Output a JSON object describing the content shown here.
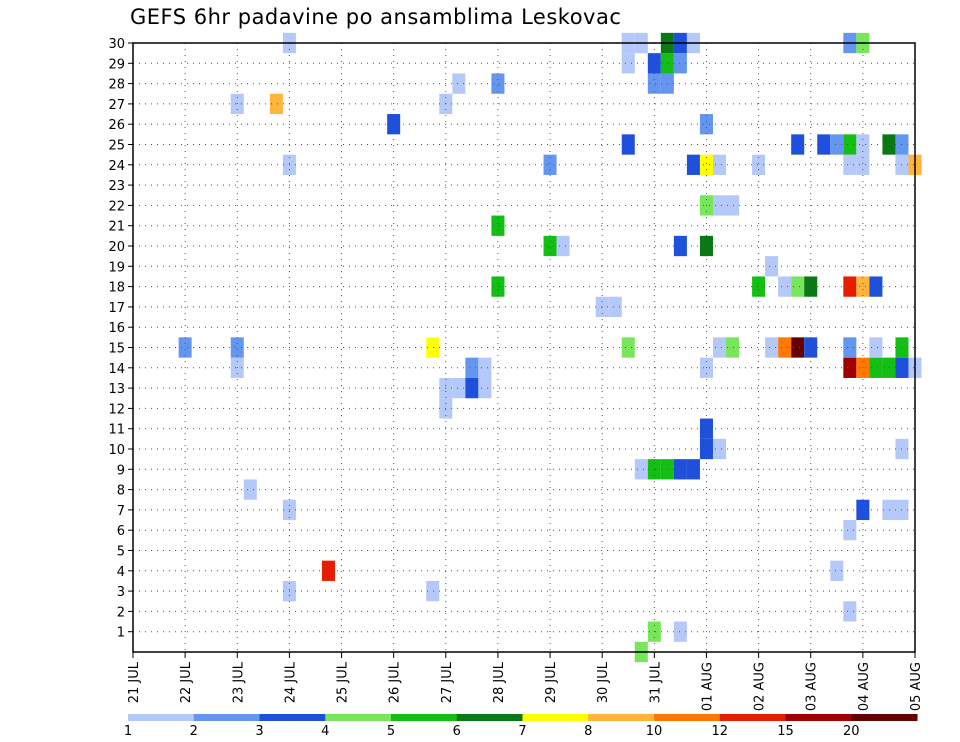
{
  "chart_data": {
    "type": "heatmap",
    "title": "GEFS 6hr padavine po ansamblima Leskovac",
    "x_labels": [
      "21 JUL",
      "22 JUL",
      "23 JUL",
      "24 JUL",
      "25 JUL",
      "26 JUL",
      "27 JUL",
      "28 JUL",
      "29 JUL",
      "30 JUL",
      "31 JUL",
      "01 AUG",
      "02 AUG",
      "03 AUG",
      "04 AUG",
      "05 AUG"
    ],
    "y_labels": [
      "1",
      "2",
      "3",
      "4",
      "5",
      "6",
      "7",
      "8",
      "9",
      "10",
      "11",
      "12",
      "13",
      "14",
      "15",
      "16",
      "17",
      "18",
      "19",
      "20",
      "21",
      "22",
      "23",
      "24",
      "25",
      "26",
      "27",
      "28",
      "29",
      "30"
    ],
    "xlim_days": [
      0,
      15
    ],
    "ylim": [
      0,
      30
    ],
    "time_step_hours": 6,
    "grid": true,
    "legend_placement": "bottom",
    "colorbar": {
      "labels": [
        "1",
        "2",
        "3",
        "4",
        "5",
        "6",
        "7",
        "8",
        "10",
        "12",
        "15",
        "20"
      ],
      "colors": [
        "#b4c8fa",
        "#6496f0",
        "#1e50dc",
        "#78e65a",
        "#14be14",
        "#0a7814",
        "#ffff00",
        "#ffb43c",
        "#ff7800",
        "#e61e00",
        "#a00000",
        "#640000"
      ]
    },
    "note_cells": "cells = [x time in days after 21 JUL 00z (6h steps), ensemble member, color class index into colorbar.colors]",
    "cells": [
      [
        9.75,
        0,
        3
      ],
      [
        10.0,
        1,
        3
      ],
      [
        10.5,
        1,
        0
      ],
      [
        13.75,
        2,
        0
      ],
      [
        3.0,
        3,
        0
      ],
      [
        5.75,
        3,
        0
      ],
      [
        3.75,
        4,
        9
      ],
      [
        13.5,
        4,
        0
      ],
      [
        13.75,
        6,
        0
      ],
      [
        3.0,
        7,
        0
      ],
      [
        14.0,
        7,
        2
      ],
      [
        14.5,
        7,
        0
      ],
      [
        14.75,
        7,
        0
      ],
      [
        2.25,
        8,
        0
      ],
      [
        9.75,
        9,
        0
      ],
      [
        10.0,
        9,
        4
      ],
      [
        10.25,
        9,
        4
      ],
      [
        10.5,
        9,
        2
      ],
      [
        10.75,
        9,
        2
      ],
      [
        11.0,
        10,
        2
      ],
      [
        11.25,
        10,
        0
      ],
      [
        14.75,
        10,
        0
      ],
      [
        11.0,
        11,
        2
      ],
      [
        6.0,
        12,
        0
      ],
      [
        6.0,
        13,
        0
      ],
      [
        6.25,
        13,
        0
      ],
      [
        6.5,
        13,
        2
      ],
      [
        6.75,
        13,
        0
      ],
      [
        2.0,
        14,
        0
      ],
      [
        6.5,
        14,
        1
      ],
      [
        6.75,
        14,
        0
      ],
      [
        11.0,
        14,
        0
      ],
      [
        13.75,
        14,
        10
      ],
      [
        14.0,
        14,
        8
      ],
      [
        14.25,
        14,
        4
      ],
      [
        14.5,
        14,
        4
      ],
      [
        14.75,
        14,
        2
      ],
      [
        15.0,
        14,
        0
      ],
      [
        1.0,
        15,
        1
      ],
      [
        2.0,
        15,
        1
      ],
      [
        5.75,
        15,
        6
      ],
      [
        9.5,
        15,
        3
      ],
      [
        11.25,
        15,
        0
      ],
      [
        11.5,
        15,
        3
      ],
      [
        12.25,
        15,
        0
      ],
      [
        12.5,
        15,
        8
      ],
      [
        12.75,
        15,
        11
      ],
      [
        13.0,
        15,
        2
      ],
      [
        13.75,
        15,
        1
      ],
      [
        14.25,
        15,
        0
      ],
      [
        14.75,
        15,
        4
      ],
      [
        9.0,
        17,
        0
      ],
      [
        9.25,
        17,
        0
      ],
      [
        7.0,
        18,
        4
      ],
      [
        12.0,
        18,
        4
      ],
      [
        12.5,
        18,
        0
      ],
      [
        12.75,
        18,
        3
      ],
      [
        13.0,
        18,
        5
      ],
      [
        13.75,
        18,
        9
      ],
      [
        14.0,
        18,
        7
      ],
      [
        14.25,
        18,
        2
      ],
      [
        12.25,
        19,
        0
      ],
      [
        8.0,
        20,
        4
      ],
      [
        8.25,
        20,
        0
      ],
      [
        10.5,
        20,
        2
      ],
      [
        11.0,
        20,
        5
      ],
      [
        7.0,
        21,
        4
      ],
      [
        11.0,
        22,
        3
      ],
      [
        11.25,
        22,
        0
      ],
      [
        11.5,
        22,
        0
      ],
      [
        3.0,
        24,
        0
      ],
      [
        8.0,
        24,
        1
      ],
      [
        10.75,
        24,
        2
      ],
      [
        11.0,
        24,
        6
      ],
      [
        11.25,
        24,
        0
      ],
      [
        12.0,
        24,
        0
      ],
      [
        13.75,
        24,
        0
      ],
      [
        14.0,
        24,
        0
      ],
      [
        14.75,
        24,
        0
      ],
      [
        15.0,
        24,
        7
      ],
      [
        9.5,
        25,
        2
      ],
      [
        12.75,
        25,
        2
      ],
      [
        13.25,
        25,
        2
      ],
      [
        13.5,
        25,
        1
      ],
      [
        13.75,
        25,
        4
      ],
      [
        14.0,
        25,
        0
      ],
      [
        14.5,
        25,
        5
      ],
      [
        14.75,
        25,
        1
      ],
      [
        5.0,
        26,
        2
      ],
      [
        11.0,
        26,
        1
      ],
      [
        2.0,
        27,
        0
      ],
      [
        2.75,
        27,
        7
      ],
      [
        6.0,
        27,
        0
      ],
      [
        6.25,
        28,
        0
      ],
      [
        7.0,
        28,
        1
      ],
      [
        10.0,
        28,
        1
      ],
      [
        10.25,
        28,
        1
      ],
      [
        9.5,
        29,
        0
      ],
      [
        10.0,
        29,
        2
      ],
      [
        10.25,
        29,
        4
      ],
      [
        10.5,
        29,
        1
      ],
      [
        3.0,
        30,
        0
      ],
      [
        9.5,
        30,
        0
      ],
      [
        9.75,
        30,
        0
      ],
      [
        10.25,
        30,
        5
      ],
      [
        10.5,
        30,
        2
      ],
      [
        10.75,
        30,
        0
      ],
      [
        13.75,
        30,
        1
      ],
      [
        14.0,
        30,
        3
      ]
    ]
  }
}
